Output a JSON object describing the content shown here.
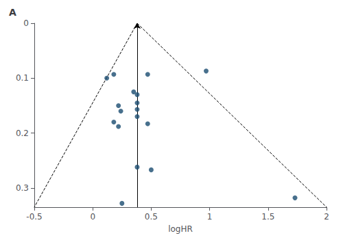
{
  "chart_data": {
    "type": "scatter",
    "title": "A",
    "xlabel": "logHR",
    "x": [
      0.12,
      0.18,
      0.22,
      0.24,
      0.18,
      0.22,
      0.35,
      0.38,
      0.38,
      0.38,
      0.38,
      0.38,
      0.47,
      0.47,
      0.5,
      0.25,
      0.97,
      1.73
    ],
    "values": [
      0.1,
      0.093,
      0.15,
      0.16,
      0.18,
      0.188,
      0.125,
      0.13,
      0.145,
      0.157,
      0.17,
      0.262,
      0.093,
      0.183,
      0.267,
      0.328,
      0.087,
      0.318
    ],
    "color": "#1a4c70",
    "xlim": [
      -0.5,
      2.0
    ],
    "ylim": [
      0.335,
      0.0
    ],
    "xticks": [
      -0.5,
      0,
      0.5,
      1.0,
      1.5,
      2.0
    ],
    "yticks": [
      0,
      0.1,
      0.2,
      0.3
    ],
    "grid": false,
    "vertical_line_x": 0.38,
    "funnel": {
      "apex_x": 0.38,
      "apex_y": 0.0,
      "base_left_x": -0.5,
      "base_right_x": 2.0,
      "base_y": 0.335
    }
  }
}
